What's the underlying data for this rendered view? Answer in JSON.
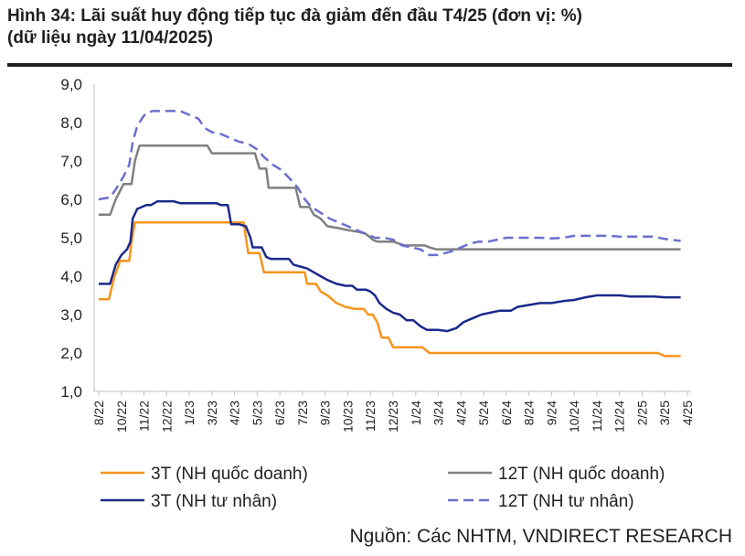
{
  "header": {
    "title": "Hình 34: Lãi suất huy động tiếp tục đà giảm đến đầu T4/25 (đơn vị: %)",
    "subtitle": "(dữ liệu ngày 11/04/2025)"
  },
  "source": "Nguồn: Các NHTM, VNDIRECT RESEARCH",
  "colors": {
    "s3t_state": "#f7941d",
    "s12t_state": "#808080",
    "s3t_private": "#1b2a8a",
    "s12t_private": "#6a6fcf"
  },
  "chart_data": {
    "type": "line",
    "ylim": [
      1.0,
      9.0
    ],
    "yticks": [
      "1,0",
      "2,0",
      "3,0",
      "4,0",
      "5,0",
      "6,0",
      "7,0",
      "8,0",
      "9,0"
    ],
    "ytick_values": [
      1,
      2,
      3,
      4,
      5,
      6,
      7,
      8,
      9
    ],
    "grid": false,
    "legend_position": "bottom",
    "xticks": [
      "8/22",
      "10/22",
      "11/22",
      "12/22",
      "1/23",
      "3/23",
      "4/23",
      "5/23",
      "6/23",
      "7/23",
      "9/23",
      "10/23",
      "11/23",
      "12/23",
      "1/24",
      "3/24",
      "4/24",
      "5/24",
      "6/24",
      "8/24",
      "9/24",
      "10/24",
      "11/24",
      "12/24",
      "2/25",
      "3/25",
      "4/25"
    ],
    "series": [
      {
        "name": "3T (NH quốc doanh)",
        "color": "#f7941d",
        "style": "solid",
        "points": [
          [
            0,
            3.4
          ],
          [
            0.45,
            3.4
          ],
          [
            0.7,
            4.0
          ],
          [
            0.95,
            4.4
          ],
          [
            1.35,
            4.4
          ],
          [
            1.45,
            4.9
          ],
          [
            1.6,
            5.4
          ],
          [
            2,
            5.4
          ],
          [
            3,
            5.4
          ],
          [
            4,
            5.4
          ],
          [
            5,
            5.4
          ],
          [
            5.9,
            5.4
          ],
          [
            6.2,
            5.4
          ],
          [
            6.4,
            5.4
          ],
          [
            6.5,
            5.0
          ],
          [
            6.6,
            4.6
          ],
          [
            7.1,
            4.6
          ],
          [
            7.3,
            4.1
          ],
          [
            8,
            4.1
          ],
          [
            9.1,
            4.1
          ],
          [
            9.2,
            3.8
          ],
          [
            9.6,
            3.8
          ],
          [
            9.8,
            3.6
          ],
          [
            10.1,
            3.5
          ],
          [
            10.5,
            3.3
          ],
          [
            10.9,
            3.2
          ],
          [
            11.3,
            3.15
          ],
          [
            11.7,
            3.15
          ],
          [
            11.9,
            3.0
          ],
          [
            12.1,
            3.0
          ],
          [
            12.3,
            2.8
          ],
          [
            12.5,
            2.4
          ],
          [
            12.8,
            2.4
          ],
          [
            13.0,
            2.15
          ],
          [
            14.3,
            2.15
          ],
          [
            14.6,
            2.0
          ],
          [
            15,
            2.0
          ],
          [
            16,
            2.0
          ],
          [
            17,
            2.0
          ],
          [
            18,
            2.0
          ],
          [
            19,
            2.0
          ],
          [
            20,
            2.0
          ],
          [
            21,
            2.0
          ],
          [
            22,
            2.0
          ],
          [
            23,
            2.0
          ],
          [
            24,
            2.0
          ],
          [
            24.7,
            2.0
          ],
          [
            25,
            1.92
          ],
          [
            25.7,
            1.92
          ]
        ]
      },
      {
        "name": "12T (NH quốc doanh)",
        "color": "#808080",
        "style": "solid",
        "points": [
          [
            0,
            5.6
          ],
          [
            0.5,
            5.6
          ],
          [
            0.75,
            6.0
          ],
          [
            1.1,
            6.4
          ],
          [
            1.45,
            6.4
          ],
          [
            1.6,
            7.0
          ],
          [
            1.8,
            7.4
          ],
          [
            2,
            7.4
          ],
          [
            3,
            7.4
          ],
          [
            4,
            7.4
          ],
          [
            4.8,
            7.4
          ],
          [
            5.0,
            7.2
          ],
          [
            6,
            7.2
          ],
          [
            6.9,
            7.2
          ],
          [
            7.1,
            6.8
          ],
          [
            7.4,
            6.8
          ],
          [
            7.5,
            6.3
          ],
          [
            8,
            6.3
          ],
          [
            8.7,
            6.3
          ],
          [
            8.9,
            5.8
          ],
          [
            9.3,
            5.8
          ],
          [
            9.5,
            5.6
          ],
          [
            9.8,
            5.5
          ],
          [
            10.1,
            5.3
          ],
          [
            10.6,
            5.25
          ],
          [
            11,
            5.2
          ],
          [
            11.5,
            5.15
          ],
          [
            11.8,
            5.1
          ],
          [
            12.1,
            4.95
          ],
          [
            12.3,
            4.9
          ],
          [
            13,
            4.9
          ],
          [
            13.5,
            4.8
          ],
          [
            14,
            4.8
          ],
          [
            14.4,
            4.8
          ],
          [
            14.6,
            4.75
          ],
          [
            14.9,
            4.7
          ],
          [
            15.5,
            4.7
          ],
          [
            16,
            4.7
          ],
          [
            17,
            4.7
          ],
          [
            18,
            4.7
          ],
          [
            19,
            4.7
          ],
          [
            20,
            4.7
          ],
          [
            21,
            4.7
          ],
          [
            22,
            4.7
          ],
          [
            23,
            4.7
          ],
          [
            24,
            4.7
          ],
          [
            25,
            4.7
          ],
          [
            25.7,
            4.7
          ]
        ]
      },
      {
        "name": "3T (NH tư nhân)",
        "color": "#1b2a8a",
        "style": "solid",
        "points": [
          [
            0,
            3.8
          ],
          [
            0.5,
            3.8
          ],
          [
            0.75,
            4.3
          ],
          [
            1.0,
            4.55
          ],
          [
            1.25,
            4.7
          ],
          [
            1.4,
            4.9
          ],
          [
            1.5,
            5.5
          ],
          [
            1.7,
            5.75
          ],
          [
            1.9,
            5.8
          ],
          [
            2.1,
            5.85
          ],
          [
            2.3,
            5.85
          ],
          [
            2.6,
            5.95
          ],
          [
            3.3,
            5.95
          ],
          [
            3.6,
            5.9
          ],
          [
            4.5,
            5.9
          ],
          [
            5.2,
            5.9
          ],
          [
            5.4,
            5.85
          ],
          [
            5.7,
            5.85
          ],
          [
            5.85,
            5.35
          ],
          [
            6.2,
            5.35
          ],
          [
            6.5,
            5.3
          ],
          [
            6.7,
            5.0
          ],
          [
            6.8,
            4.75
          ],
          [
            7.2,
            4.75
          ],
          [
            7.4,
            4.5
          ],
          [
            7.6,
            4.45
          ],
          [
            8,
            4.45
          ],
          [
            8.4,
            4.45
          ],
          [
            8.6,
            4.3
          ],
          [
            8.9,
            4.25
          ],
          [
            9.2,
            4.2
          ],
          [
            9.5,
            4.1
          ],
          [
            9.8,
            4.0
          ],
          [
            10.1,
            3.9
          ],
          [
            10.5,
            3.8
          ],
          [
            10.9,
            3.75
          ],
          [
            11.2,
            3.75
          ],
          [
            11.4,
            3.65
          ],
          [
            11.8,
            3.65
          ],
          [
            12.0,
            3.6
          ],
          [
            12.2,
            3.5
          ],
          [
            12.4,
            3.3
          ],
          [
            12.7,
            3.15
          ],
          [
            13,
            3.05
          ],
          [
            13.3,
            3.0
          ],
          [
            13.6,
            2.85
          ],
          [
            13.9,
            2.85
          ],
          [
            14.2,
            2.7
          ],
          [
            14.5,
            2.6
          ],
          [
            15,
            2.6
          ],
          [
            15.4,
            2.57
          ],
          [
            15.8,
            2.65
          ],
          [
            16.1,
            2.8
          ],
          [
            16.5,
            2.9
          ],
          [
            16.9,
            3.0
          ],
          [
            17.3,
            3.05
          ],
          [
            17.7,
            3.1
          ],
          [
            18.2,
            3.1
          ],
          [
            18.5,
            3.2
          ],
          [
            19,
            3.25
          ],
          [
            19.5,
            3.3
          ],
          [
            20,
            3.3
          ],
          [
            20.5,
            3.35
          ],
          [
            21,
            3.38
          ],
          [
            21.5,
            3.45
          ],
          [
            22,
            3.5
          ],
          [
            22.5,
            3.5
          ],
          [
            23,
            3.5
          ],
          [
            23.5,
            3.47
          ],
          [
            24,
            3.47
          ],
          [
            24.5,
            3.47
          ],
          [
            25,
            3.45
          ],
          [
            25.7,
            3.45
          ]
        ]
      },
      {
        "name": "12T (NH tư nhân)",
        "color": "#6a6fcf",
        "style": "dashed",
        "points": [
          [
            0,
            6.0
          ],
          [
            0.5,
            6.05
          ],
          [
            0.8,
            6.3
          ],
          [
            1.1,
            6.6
          ],
          [
            1.35,
            6.9
          ],
          [
            1.5,
            7.5
          ],
          [
            1.7,
            7.9
          ],
          [
            1.9,
            8.1
          ],
          [
            2.1,
            8.25
          ],
          [
            2.4,
            8.3
          ],
          [
            3,
            8.3
          ],
          [
            3.6,
            8.3
          ],
          [
            4.0,
            8.2
          ],
          [
            4.4,
            8.1
          ],
          [
            4.7,
            7.85
          ],
          [
            5.0,
            7.75
          ],
          [
            5.4,
            7.7
          ],
          [
            5.8,
            7.6
          ],
          [
            6.2,
            7.5
          ],
          [
            6.6,
            7.45
          ],
          [
            7.0,
            7.3
          ],
          [
            7.3,
            7.1
          ],
          [
            7.7,
            6.9
          ],
          [
            8.1,
            6.75
          ],
          [
            8.5,
            6.5
          ],
          [
            8.8,
            6.3
          ],
          [
            9.1,
            6.0
          ],
          [
            9.4,
            5.8
          ],
          [
            9.8,
            5.65
          ],
          [
            10.2,
            5.5
          ],
          [
            10.6,
            5.4
          ],
          [
            11,
            5.3
          ],
          [
            11.4,
            5.2
          ],
          [
            11.8,
            5.1
          ],
          [
            12.2,
            5.0
          ],
          [
            12.6,
            5.0
          ],
          [
            13,
            4.95
          ],
          [
            13.4,
            4.8
          ],
          [
            13.8,
            4.75
          ],
          [
            14.2,
            4.7
          ],
          [
            14.6,
            4.55
          ],
          [
            15,
            4.55
          ],
          [
            15.3,
            4.6
          ],
          [
            15.6,
            4.65
          ],
          [
            16,
            4.75
          ],
          [
            16.4,
            4.85
          ],
          [
            16.8,
            4.9
          ],
          [
            17.2,
            4.9
          ],
          [
            17.6,
            4.95
          ],
          [
            18,
            5.0
          ],
          [
            18.5,
            5.0
          ],
          [
            19,
            5.0
          ],
          [
            19.5,
            5.0
          ],
          [
            20,
            4.98
          ],
          [
            20.5,
            5.0
          ],
          [
            21,
            5.05
          ],
          [
            21.5,
            5.05
          ],
          [
            22,
            5.05
          ],
          [
            22.5,
            5.05
          ],
          [
            23,
            5.03
          ],
          [
            23.5,
            5.03
          ],
          [
            24,
            5.03
          ],
          [
            24.5,
            5.03
          ],
          [
            25,
            4.97
          ],
          [
            25.7,
            4.92
          ]
        ]
      }
    ]
  }
}
